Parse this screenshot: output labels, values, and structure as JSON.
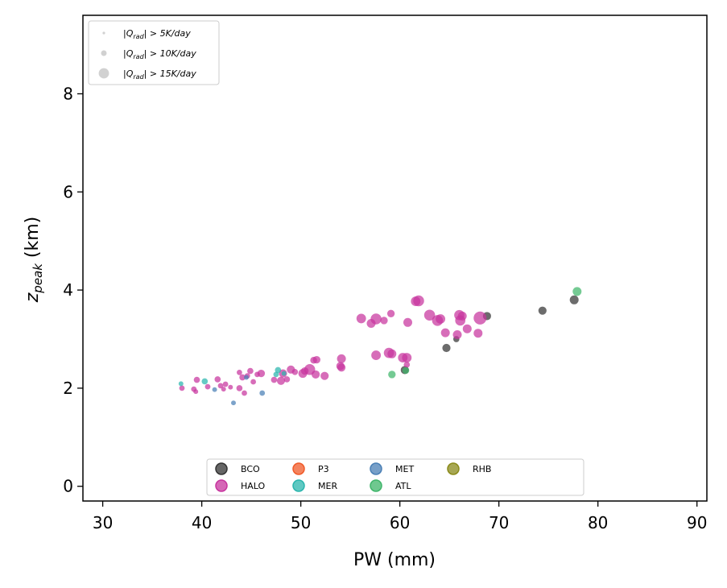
{
  "chart_data": {
    "type": "scatter",
    "title": "",
    "xlabel": "PW (mm)",
    "ylabel_main": "z",
    "ylabel_sub": "peak",
    "ylabel_unit": " (km)",
    "xlim": [
      28,
      91
    ],
    "ylim": [
      -0.3,
      9.6
    ],
    "xticks": [
      30,
      40,
      50,
      60,
      70,
      80,
      90
    ],
    "yticks": [
      0,
      2,
      4,
      6,
      8
    ],
    "grid": false,
    "size_legend": {
      "placement": "top-left",
      "entries": [
        {
          "label": "|Q_rad| > 5K/day",
          "main": "|Q",
          "sub": "rad",
          "rest": "| > 5K/day",
          "level": 5
        },
        {
          "label": "|Q_rad| > 10K/day",
          "main": "|Q",
          "sub": "rad",
          "rest": "| > 10K/day",
          "level": 10
        },
        {
          "label": "|Q_rad| > 15K/day",
          "main": "|Q",
          "sub": "rad",
          "rest": "| > 15K/day",
          "level": 15
        }
      ]
    },
    "platform_legend": {
      "placement": "lower-center",
      "entries": [
        {
          "label": "BCO",
          "color": "#333333"
        },
        {
          "label": "HALO",
          "color": "#c7349e"
        },
        {
          "label": "P3",
          "color": "#f05a28"
        },
        {
          "label": "MER",
          "color": "#2ab5ad"
        },
        {
          "label": "MET",
          "color": "#4a7fb5"
        },
        {
          "label": "ATL",
          "color": "#3fb56a"
        },
        {
          "label": "RHB",
          "color": "#8a8a1a"
        }
      ]
    },
    "series": [
      {
        "name": "BCO",
        "color": "#333333",
        "points": [
          {
            "x": 60.5,
            "y": 2.37,
            "q": 9
          },
          {
            "x": 64.7,
            "y": 2.82,
            "q": 9
          },
          {
            "x": 65.7,
            "y": 3.0,
            "q": 6
          },
          {
            "x": 68.8,
            "y": 3.47,
            "q": 9
          },
          {
            "x": 74.4,
            "y": 3.58,
            "q": 9
          },
          {
            "x": 77.6,
            "y": 3.8,
            "q": 10
          }
        ]
      },
      {
        "name": "HALO",
        "color": "#c7349e",
        "points": [
          {
            "x": 38.0,
            "y": 2.0,
            "q": 5
          },
          {
            "x": 39.2,
            "y": 1.98,
            "q": 5
          },
          {
            "x": 39.4,
            "y": 1.93,
            "q": 4
          },
          {
            "x": 39.5,
            "y": 2.17,
            "q": 6
          },
          {
            "x": 40.6,
            "y": 2.03,
            "q": 5
          },
          {
            "x": 41.6,
            "y": 2.18,
            "q": 6
          },
          {
            "x": 41.9,
            "y": 2.05,
            "q": 5
          },
          {
            "x": 42.2,
            "y": 1.98,
            "q": 4
          },
          {
            "x": 42.4,
            "y": 2.08,
            "q": 5
          },
          {
            "x": 42.9,
            "y": 2.02,
            "q": 4
          },
          {
            "x": 43.8,
            "y": 2.0,
            "q": 6
          },
          {
            "x": 43.8,
            "y": 2.32,
            "q": 5
          },
          {
            "x": 44.1,
            "y": 2.22,
            "q": 6
          },
          {
            "x": 44.3,
            "y": 1.9,
            "q": 5
          },
          {
            "x": 44.6,
            "y": 2.25,
            "q": 5
          },
          {
            "x": 44.9,
            "y": 2.35,
            "q": 6
          },
          {
            "x": 45.2,
            "y": 2.13,
            "q": 5
          },
          {
            "x": 45.6,
            "y": 2.28,
            "q": 5
          },
          {
            "x": 46.0,
            "y": 2.3,
            "q": 8
          },
          {
            "x": 47.3,
            "y": 2.17,
            "q": 6
          },
          {
            "x": 48.0,
            "y": 2.15,
            "q": 9
          },
          {
            "x": 48.2,
            "y": 2.3,
            "q": 9
          },
          {
            "x": 48.6,
            "y": 2.18,
            "q": 6
          },
          {
            "x": 49.0,
            "y": 2.38,
            "q": 9
          },
          {
            "x": 49.4,
            "y": 2.33,
            "q": 6
          },
          {
            "x": 50.2,
            "y": 2.3,
            "q": 10
          },
          {
            "x": 50.4,
            "y": 2.35,
            "q": 8
          },
          {
            "x": 50.9,
            "y": 2.38,
            "q": 13
          },
          {
            "x": 51.3,
            "y": 2.57,
            "q": 7
          },
          {
            "x": 51.6,
            "y": 2.58,
            "q": 8
          },
          {
            "x": 51.5,
            "y": 2.28,
            "q": 9
          },
          {
            "x": 52.4,
            "y": 2.25,
            "q": 9
          },
          {
            "x": 54.1,
            "y": 2.6,
            "q": 10
          },
          {
            "x": 54.0,
            "y": 2.45,
            "q": 9
          },
          {
            "x": 54.1,
            "y": 2.42,
            "q": 9
          },
          {
            "x": 56.1,
            "y": 3.42,
            "q": 11
          },
          {
            "x": 57.1,
            "y": 3.32,
            "q": 10
          },
          {
            "x": 57.6,
            "y": 3.41,
            "q": 13
          },
          {
            "x": 57.6,
            "y": 2.67,
            "q": 11
          },
          {
            "x": 58.4,
            "y": 3.38,
            "q": 8
          },
          {
            "x": 58.9,
            "y": 2.72,
            "q": 12
          },
          {
            "x": 59.1,
            "y": 3.52,
            "q": 8
          },
          {
            "x": 59.2,
            "y": 2.7,
            "q": 10
          },
          {
            "x": 60.3,
            "y": 2.62,
            "q": 11
          },
          {
            "x": 60.7,
            "y": 2.62,
            "q": 11
          },
          {
            "x": 60.7,
            "y": 2.48,
            "q": 6
          },
          {
            "x": 60.8,
            "y": 3.34,
            "q": 10
          },
          {
            "x": 61.6,
            "y": 3.77,
            "q": 11
          },
          {
            "x": 61.9,
            "y": 3.78,
            "q": 13
          },
          {
            "x": 63.0,
            "y": 3.49,
            "q": 13
          },
          {
            "x": 63.8,
            "y": 3.38,
            "q": 13
          },
          {
            "x": 64.1,
            "y": 3.41,
            "q": 11
          },
          {
            "x": 64.6,
            "y": 3.13,
            "q": 10
          },
          {
            "x": 65.8,
            "y": 3.09,
            "q": 10
          },
          {
            "x": 66.0,
            "y": 3.49,
            "q": 12
          },
          {
            "x": 66.1,
            "y": 3.38,
            "q": 12
          },
          {
            "x": 66.3,
            "y": 3.47,
            "q": 10
          },
          {
            "x": 66.8,
            "y": 3.21,
            "q": 10
          },
          {
            "x": 67.9,
            "y": 3.12,
            "q": 10
          },
          {
            "x": 68.1,
            "y": 3.43,
            "q": 16
          }
        ]
      },
      {
        "name": "MER",
        "color": "#2ab5ad",
        "points": [
          {
            "x": 37.9,
            "y": 2.09,
            "q": 4
          },
          {
            "x": 40.3,
            "y": 2.14,
            "q": 6
          },
          {
            "x": 47.5,
            "y": 2.28,
            "q": 5
          },
          {
            "x": 47.7,
            "y": 2.37,
            "q": 6
          },
          {
            "x": 48.3,
            "y": 2.3,
            "q": 4
          }
        ]
      },
      {
        "name": "MET",
        "color": "#4a7fb5",
        "points": [
          {
            "x": 41.3,
            "y": 1.97,
            "q": 4
          },
          {
            "x": 43.2,
            "y": 1.7,
            "q": 4
          },
          {
            "x": 44.5,
            "y": 2.22,
            "q": 4
          },
          {
            "x": 46.1,
            "y": 1.9,
            "q": 5
          }
        ]
      },
      {
        "name": "ATL",
        "color": "#3fb56a",
        "points": [
          {
            "x": 59.2,
            "y": 2.28,
            "q": 8
          },
          {
            "x": 60.6,
            "y": 2.36,
            "q": 7
          },
          {
            "x": 77.9,
            "y": 3.97,
            "q": 10
          }
        ]
      }
    ]
  }
}
